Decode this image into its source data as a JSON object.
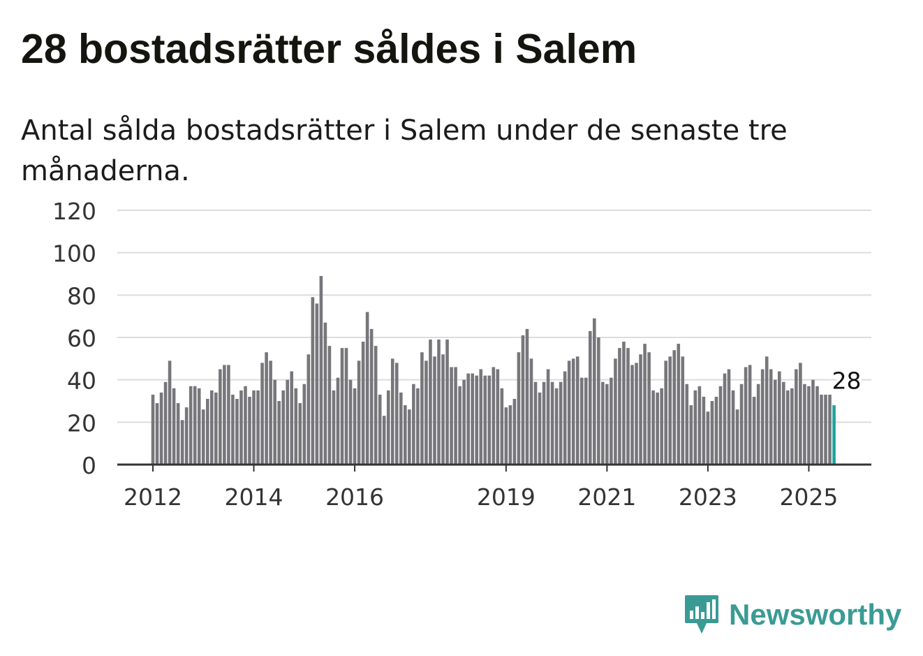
{
  "title": "28 bostadsrätter såldes i Salem",
  "subtitle": "Antal sålda bostadsrätter i Salem under de senaste tre månaderna.",
  "brand": {
    "name": "Newsworthy",
    "color": "#3a9b94",
    "icon": "newsworthy-logo-icon"
  },
  "chart_data": {
    "type": "bar",
    "ylim": [
      0,
      120
    ],
    "y_ticks": [
      "0",
      "20",
      "40",
      "60",
      "80",
      "100",
      "120"
    ],
    "x_ticks": [
      "2012",
      "2014",
      "2016",
      "2019",
      "2021",
      "2023",
      "2025"
    ],
    "x_tick_start_index": [
      0,
      24,
      48,
      84,
      108,
      132,
      156
    ],
    "grid": true,
    "bar_color": "#77767b",
    "highlight_color": "#20a39a",
    "highlight_label": "28",
    "values": [
      33,
      29,
      34,
      39,
      49,
      36,
      29,
      21,
      27,
      37,
      37,
      36,
      26,
      31,
      35,
      34,
      45,
      47,
      47,
      33,
      31,
      35,
      37,
      32,
      35,
      35,
      48,
      53,
      49,
      40,
      30,
      35,
      40,
      44,
      36,
      29,
      38,
      52,
      79,
      76,
      89,
      67,
      56,
      35,
      41,
      55,
      55,
      40,
      36,
      49,
      58,
      72,
      64,
      56,
      33,
      23,
      35,
      50,
      48,
      34,
      28,
      26,
      38,
      36,
      53,
      49,
      59,
      51,
      59,
      52,
      59,
      46,
      46,
      37,
      40,
      43,
      43,
      42,
      45,
      42,
      42,
      46,
      45,
      36,
      27,
      28,
      31,
      53,
      61,
      64,
      50,
      39,
      34,
      39,
      45,
      39,
      36,
      39,
      44,
      49,
      50,
      51,
      41,
      41,
      63,
      69,
      60,
      39,
      38,
      41,
      50,
      55,
      58,
      55,
      47,
      48,
      52,
      57,
      53,
      35,
      34,
      36,
      49,
      51,
      54,
      57,
      51,
      38,
      28,
      35,
      37,
      32,
      25,
      30,
      32,
      37,
      43,
      45,
      35,
      26,
      38,
      46,
      47,
      32,
      38,
      45,
      51,
      45,
      40,
      44,
      39,
      35,
      36,
      45,
      48,
      38,
      37,
      40,
      37,
      33,
      33,
      33,
      28
    ]
  }
}
